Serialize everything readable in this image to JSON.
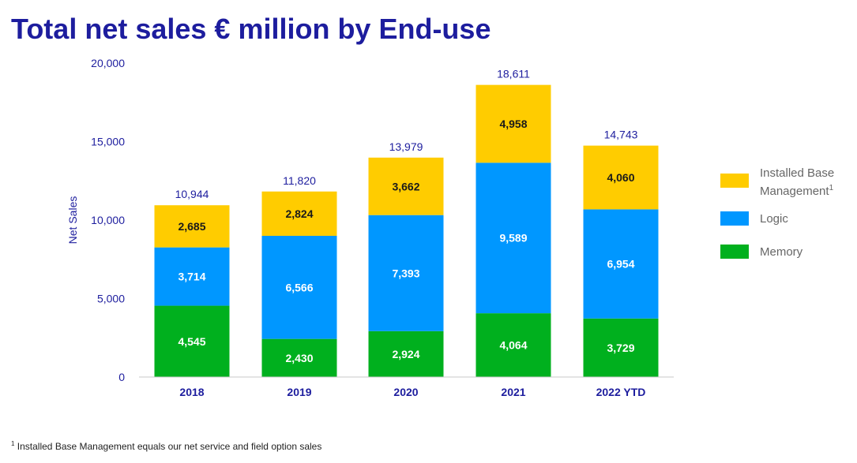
{
  "title": "Total net sales € million by End-use",
  "footnote": {
    "marker": "1",
    "text": " Installed Base Management equals our net service and field option sales"
  },
  "colors": {
    "title": "#1d1d9e",
    "axis_text": "#1d1d9e",
    "memory": "#00b01e",
    "logic": "#0097ff",
    "ibm": "#ffcc00"
  },
  "chart_data": {
    "type": "bar",
    "stacked": true,
    "categories": [
      "2018",
      "2019",
      "2020",
      "2021",
      "2022 YTD"
    ],
    "series": [
      {
        "name": "Memory",
        "color": "#00b01e",
        "label_color": "#ffffff",
        "values": [
          4545,
          2430,
          2924,
          4064,
          3729
        ],
        "labels": [
          "4,545",
          "2,430",
          "2,924",
          "4,064",
          "3,729"
        ]
      },
      {
        "name": "Logic",
        "color": "#0097ff",
        "label_color": "#ffffff",
        "values": [
          3714,
          6566,
          7393,
          9589,
          6954
        ],
        "labels": [
          "3,714",
          "6,566",
          "7,393",
          "9,589",
          "6,954"
        ]
      },
      {
        "name": "Installed Base Management",
        "color": "#ffcc00",
        "label_color": "#1a1a1a",
        "values": [
          2685,
          2824,
          3662,
          4958,
          4060
        ],
        "labels": [
          "2,685",
          "2,824",
          "3,662",
          "4,958",
          "4,060"
        ]
      }
    ],
    "totals": [
      10944,
      11820,
      13979,
      18611,
      14743
    ],
    "total_labels": [
      "10,944",
      "11,820",
      "13,979",
      "18,611",
      "14,743"
    ],
    "ylabel": "Net Sales",
    "ylim": [
      0,
      20000
    ],
    "yticks": [
      0,
      5000,
      10000,
      15000,
      20000
    ],
    "ytick_labels": [
      "0",
      "5,000",
      "10,000",
      "15,000",
      "20,000"
    ],
    "grid": false,
    "legend_position": "right"
  },
  "legend": [
    {
      "label": "Installed Base",
      "label_line2": "Management",
      "sup": "1",
      "color": "#ffcc00"
    },
    {
      "label": "Logic",
      "label_line2": "",
      "sup": "",
      "color": "#0097ff"
    },
    {
      "label": "Memory",
      "label_line2": "",
      "sup": "",
      "color": "#00b01e"
    }
  ]
}
